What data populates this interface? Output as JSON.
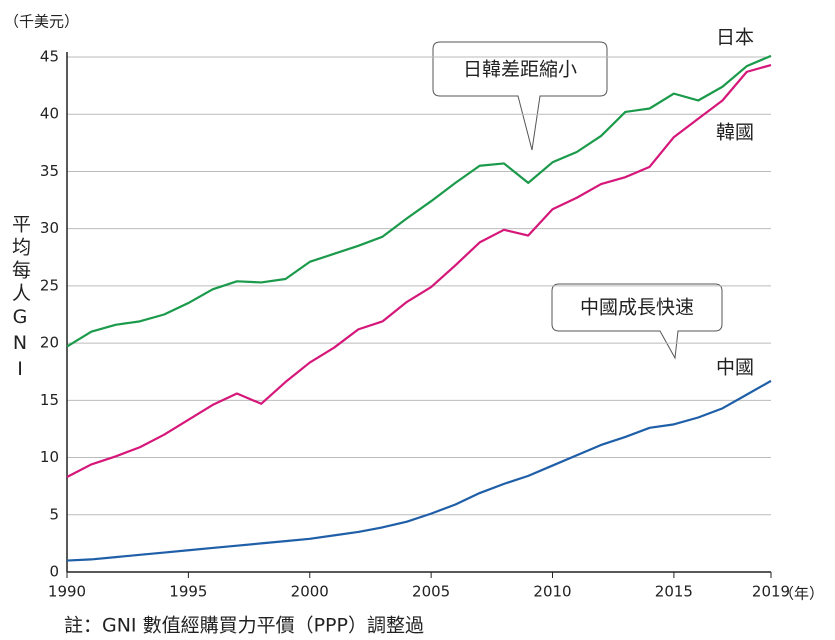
{
  "chart_data": {
    "type": "line",
    "y_unit_label": "（千美元）",
    "y_axis_label": "平均每人GNI",
    "x_unit_label": "（年）",
    "note": "註：GNI 數值經購買力平價（PPP）調整過",
    "annotations": [
      "日韓差距縮小",
      "中國成長快速"
    ],
    "x": [
      1990,
      1991,
      1992,
      1993,
      1994,
      1995,
      1996,
      1997,
      1998,
      1999,
      2000,
      2001,
      2002,
      2003,
      2004,
      2005,
      2006,
      2007,
      2008,
      2009,
      2010,
      2011,
      2012,
      2013,
      2014,
      2015,
      2016,
      2017,
      2018,
      2019
    ],
    "series": [
      {
        "name": "日本",
        "color": "#1a9a4a",
        "values": [
          19.7,
          21.0,
          21.6,
          21.9,
          22.5,
          23.5,
          24.7,
          25.4,
          25.3,
          25.6,
          27.1,
          27.8,
          28.5,
          29.3,
          30.9,
          32.4,
          34.0,
          35.5,
          35.7,
          34.0,
          35.8,
          36.7,
          38.1,
          40.2,
          40.5,
          41.8,
          41.2,
          42.4,
          44.2,
          45.1
        ]
      },
      {
        "name": "韓國",
        "color": "#d6177a",
        "values": [
          8.3,
          9.4,
          10.1,
          10.9,
          12.0,
          13.3,
          14.6,
          15.6,
          14.7,
          16.6,
          18.3,
          19.6,
          21.2,
          21.9,
          23.6,
          24.9,
          26.8,
          28.8,
          29.9,
          29.4,
          31.7,
          32.7,
          33.9,
          34.5,
          35.4,
          38.0,
          39.6,
          41.2,
          43.7,
          44.3
        ]
      },
      {
        "name": "中國",
        "color": "#1f5fa8",
        "values": [
          1.0,
          1.1,
          1.3,
          1.5,
          1.7,
          1.9,
          2.1,
          2.3,
          2.5,
          2.7,
          2.9,
          3.2,
          3.5,
          3.9,
          4.4,
          5.1,
          5.9,
          6.9,
          7.7,
          8.4,
          9.3,
          10.2,
          11.1,
          11.8,
          12.6,
          12.9,
          13.5,
          14.3,
          15.5,
          16.7
        ]
      }
    ],
    "xlim": [
      1990,
      2019
    ],
    "xticks": [
      1990,
      1995,
      2000,
      2005,
      2010,
      2015,
      2019
    ],
    "ylim": [
      0,
      45
    ],
    "yticks": [
      0,
      5,
      10,
      15,
      20,
      25,
      30,
      35,
      40,
      45
    ],
    "grid": true
  }
}
